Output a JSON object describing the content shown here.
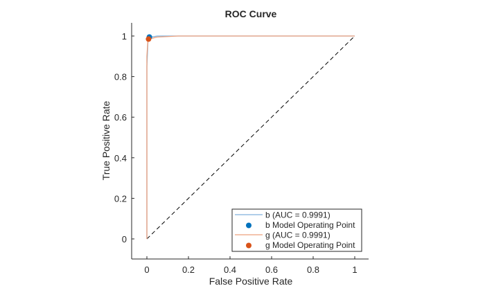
{
  "chart_data": {
    "type": "line",
    "title": "ROC Curve",
    "xlabel": "False Positive Rate",
    "ylabel": "True Positive Rate",
    "xlim": [
      -0.07,
      1.07
    ],
    "ylim": [
      -0.1,
      1.07
    ],
    "xticks": [
      0,
      0.2,
      0.4,
      0.6,
      0.8,
      1
    ],
    "xtick_labels": [
      "0",
      "0.2",
      "0.4",
      "0.6",
      "0.8",
      "1"
    ],
    "yticks": [
      0,
      0.2,
      0.4,
      0.6,
      0.8,
      1
    ],
    "ytick_labels": [
      "0",
      "0.2",
      "0.4",
      "0.6",
      "0.8",
      "1"
    ],
    "grid": false,
    "legend_position": "bottom-right",
    "series": [
      {
        "name": "b (AUC = 0.9991)",
        "color": "#0072BD",
        "line_color": "#7FB1DC",
        "x": [
          0,
          0,
          0.005,
          0.01,
          0.02,
          0.05,
          0.15,
          1
        ],
        "y": [
          0,
          0.85,
          0.97,
          0.99,
          0.995,
          1,
          1,
          1
        ]
      },
      {
        "name": "g (AUC = 0.9991)",
        "color": "#D95319",
        "line_color": "#EDA07C",
        "x": [
          0,
          0,
          0.005,
          0.01,
          0.05,
          0.15,
          1
        ],
        "y": [
          0,
          0.9,
          0.98,
          0.985,
          0.995,
          1,
          1
        ]
      }
    ],
    "operating_points": [
      {
        "name": "b Model Operating Point",
        "x": 0.012,
        "y": 0.995,
        "color": "#0072BD"
      },
      {
        "name": "g Model Operating Point",
        "x": 0.008,
        "y": 0.985,
        "color": "#D95319"
      }
    ],
    "reference_line": {
      "x": [
        0,
        1
      ],
      "y": [
        0,
        1
      ],
      "style": "dashed",
      "color": "#000000"
    },
    "legend": [
      {
        "label": "b (AUC = 0.9991)",
        "kind": "line",
        "color": "#7FB1DC"
      },
      {
        "label": "b Model Operating Point",
        "kind": "marker",
        "color": "#0072BD"
      },
      {
        "label": "g (AUC = 0.9991)",
        "kind": "line",
        "color": "#EDA07C"
      },
      {
        "label": "g Model Operating Point",
        "kind": "marker",
        "color": "#D95319"
      }
    ]
  }
}
